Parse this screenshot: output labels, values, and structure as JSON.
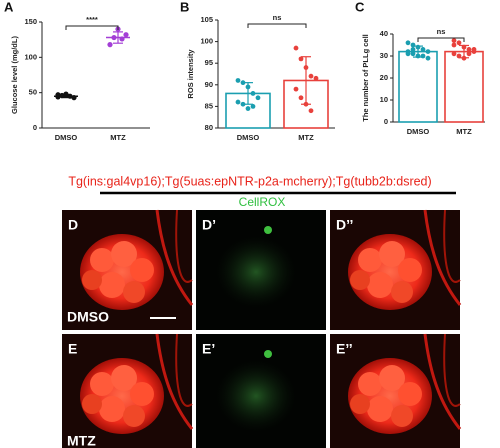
{
  "chart_data": [
    {
      "type": "dot",
      "panel": "A",
      "ylabel": "Glucose level (mg/dL)",
      "categories": [
        "DMSO",
        "MTZ"
      ],
      "values": [
        45,
        128
      ],
      "errors": [
        2,
        8
      ],
      "points": [
        [
          44,
          46,
          48,
          45,
          43,
          47
        ],
        [
          118,
          128,
          140,
          126,
          132
        ]
      ],
      "colors": [
        "#111111",
        "#a33fd6"
      ],
      "ylim": [
        0,
        150
      ],
      "yticks": [
        0,
        50,
        100,
        150
      ],
      "annotation": "****"
    },
    {
      "type": "bar",
      "panel": "B",
      "ylabel": "ROS intensity",
      "categories": [
        "DMSO",
        "MTZ"
      ],
      "values": [
        88,
        91
      ],
      "errors": [
        2.5,
        5.5
      ],
      "points": [
        [
          91,
          90.5,
          89.5,
          88,
          87,
          86,
          85.5,
          84.5,
          85
        ],
        [
          98.5,
          96,
          94,
          92,
          91.5,
          89,
          87,
          85.5,
          84
        ]
      ],
      "colors": [
        "#1a9eb0",
        "#e8413c"
      ],
      "ylim": [
        80,
        105
      ],
      "yticks": [
        80,
        85,
        90,
        95,
        100,
        105
      ],
      "annotation": "ns"
    },
    {
      "type": "bar",
      "panel": "C",
      "ylabel": "The number of PLLg cell",
      "categories": [
        "DMSO",
        "MTZ"
      ],
      "values": [
        32,
        32
      ],
      "errors": [
        2.5,
        2.8
      ],
      "points": [
        [
          36,
          35,
          34,
          33,
          32,
          32,
          31,
          30,
          30,
          29,
          31,
          33
        ],
        [
          37,
          36,
          34,
          33,
          32,
          31,
          30,
          29,
          31,
          33,
          35
        ]
      ],
      "colors": [
        "#1a9eb0",
        "#e8413c"
      ],
      "ylim": [
        0,
        40
      ],
      "yticks": [
        0,
        10,
        20,
        30,
        40
      ],
      "annotation": "ns"
    }
  ],
  "figure": {
    "genotype": "Tg(ins:gal4vp16);Tg(5uas:epNTR-p2a-mcherry);Tg(tubb2b:dsred)",
    "stain": "CellROX",
    "image_labels": [
      [
        "D",
        "D’",
        "D’’"
      ],
      [
        "E",
        "E’",
        "E’’"
      ]
    ],
    "row_labels": [
      "DMSO",
      "MTZ"
    ]
  }
}
